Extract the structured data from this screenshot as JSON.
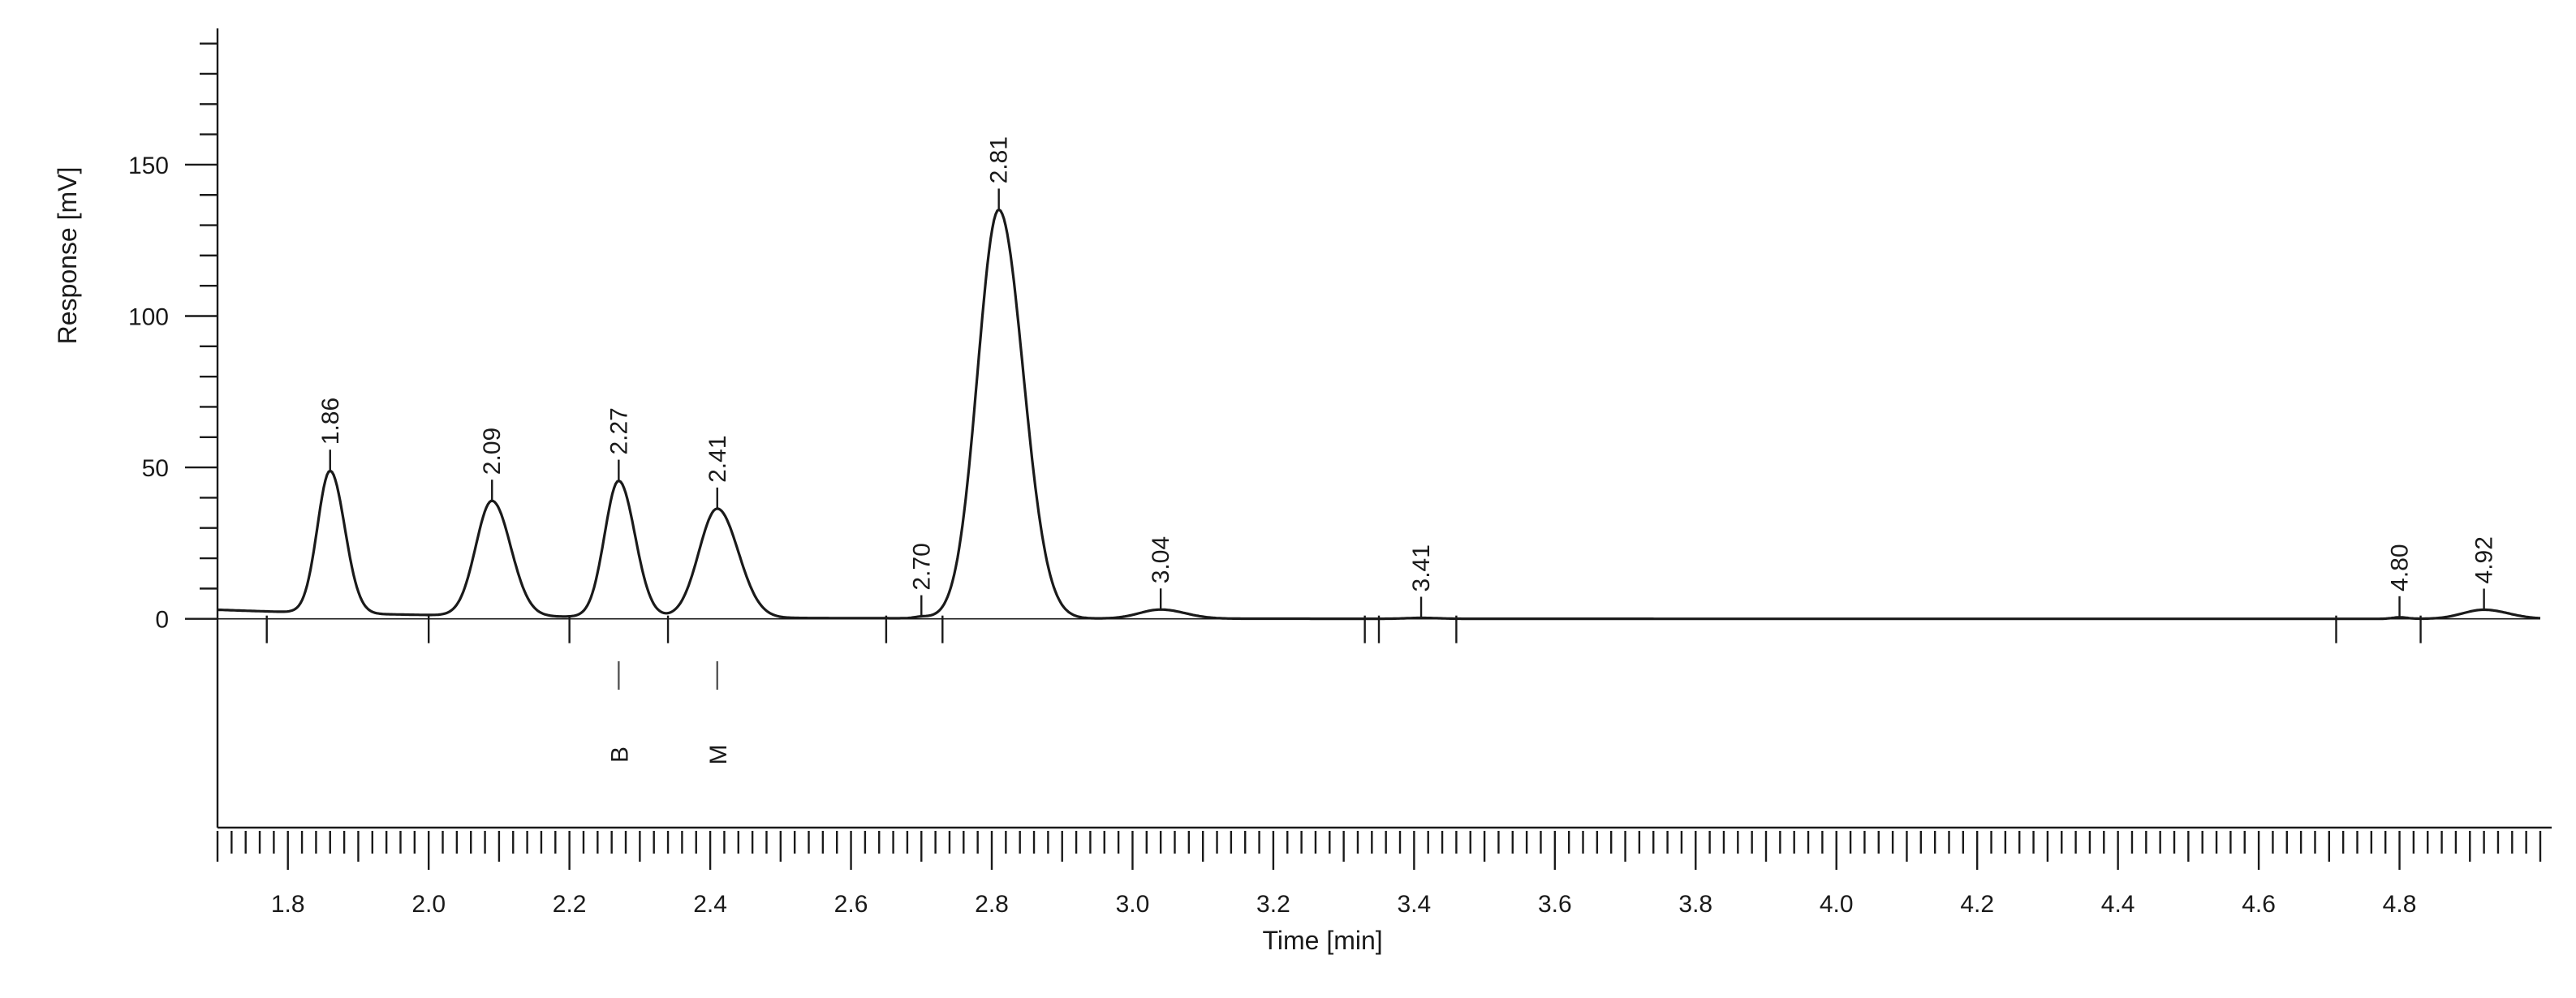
{
  "chart_data": {
    "type": "line",
    "title": "",
    "xlabel": "Time [min]",
    "ylabel": "Response [mV]",
    "xlim": [
      1.7,
      5.0
    ],
    "ylim": [
      -10,
      195
    ],
    "x_ticks": [
      {
        "value": 1.8,
        "label": "1.8"
      },
      {
        "value": 2.0,
        "label": "2.0"
      },
      {
        "value": 2.2,
        "label": "2.2"
      },
      {
        "value": 2.4,
        "label": "2.4"
      },
      {
        "value": 2.6,
        "label": "2.6"
      },
      {
        "value": 2.8,
        "label": "2.8"
      },
      {
        "value": 3.0,
        "label": "3.0"
      },
      {
        "value": 3.2,
        "label": "3.2"
      },
      {
        "value": 3.4,
        "label": "3.4"
      },
      {
        "value": 3.6,
        "label": "3.6"
      },
      {
        "value": 3.8,
        "label": "3.8"
      },
      {
        "value": 4.0,
        "label": "4.0"
      },
      {
        "value": 4.2,
        "label": "4.2"
      },
      {
        "value": 4.4,
        "label": "4.4"
      },
      {
        "value": 4.6,
        "label": "4.6"
      },
      {
        "value": 4.8,
        "label": "4.8"
      }
    ],
    "y_ticks": [
      {
        "value": 0,
        "label": "0"
      },
      {
        "value": 50,
        "label": "50"
      },
      {
        "value": 100,
        "label": "100"
      },
      {
        "value": 150,
        "label": "150"
      }
    ],
    "y_minor_step": 10,
    "x_minor_step": 0.02,
    "baseline_start_value": 3,
    "peaks": [
      {
        "label": "1.86",
        "time": 1.86,
        "height": 47,
        "width": 0.018
      },
      {
        "label": "2.09",
        "time": 2.09,
        "height": 38,
        "width": 0.023
      },
      {
        "label": "2.27",
        "time": 2.27,
        "height": 45,
        "width": 0.02
      },
      {
        "label": "2.41",
        "time": 2.41,
        "height": 36,
        "width": 0.026
      },
      {
        "label": "2.70",
        "time": 2.7,
        "height": 0.5,
        "width": 0.01
      },
      {
        "label": "2.81",
        "time": 2.81,
        "height": 135,
        "width": 0.03
      },
      {
        "label": "3.04",
        "time": 3.04,
        "height": 3,
        "width": 0.03
      },
      {
        "label": "3.41",
        "time": 3.41,
        "height": 0.3,
        "width": 0.02
      },
      {
        "label": "4.80",
        "time": 4.8,
        "height": 0.5,
        "width": 0.01
      },
      {
        "label": "4.92",
        "time": 4.92,
        "height": 3,
        "width": 0.03
      }
    ],
    "integration_marks": [
      1.77,
      2.0,
      2.2,
      2.34,
      2.65,
      2.73,
      3.33,
      3.35,
      3.46,
      4.71,
      4.83
    ],
    "annotations": [
      {
        "label": "B",
        "time": 2.27
      },
      {
        "label": "M",
        "time": 2.41
      }
    ]
  }
}
